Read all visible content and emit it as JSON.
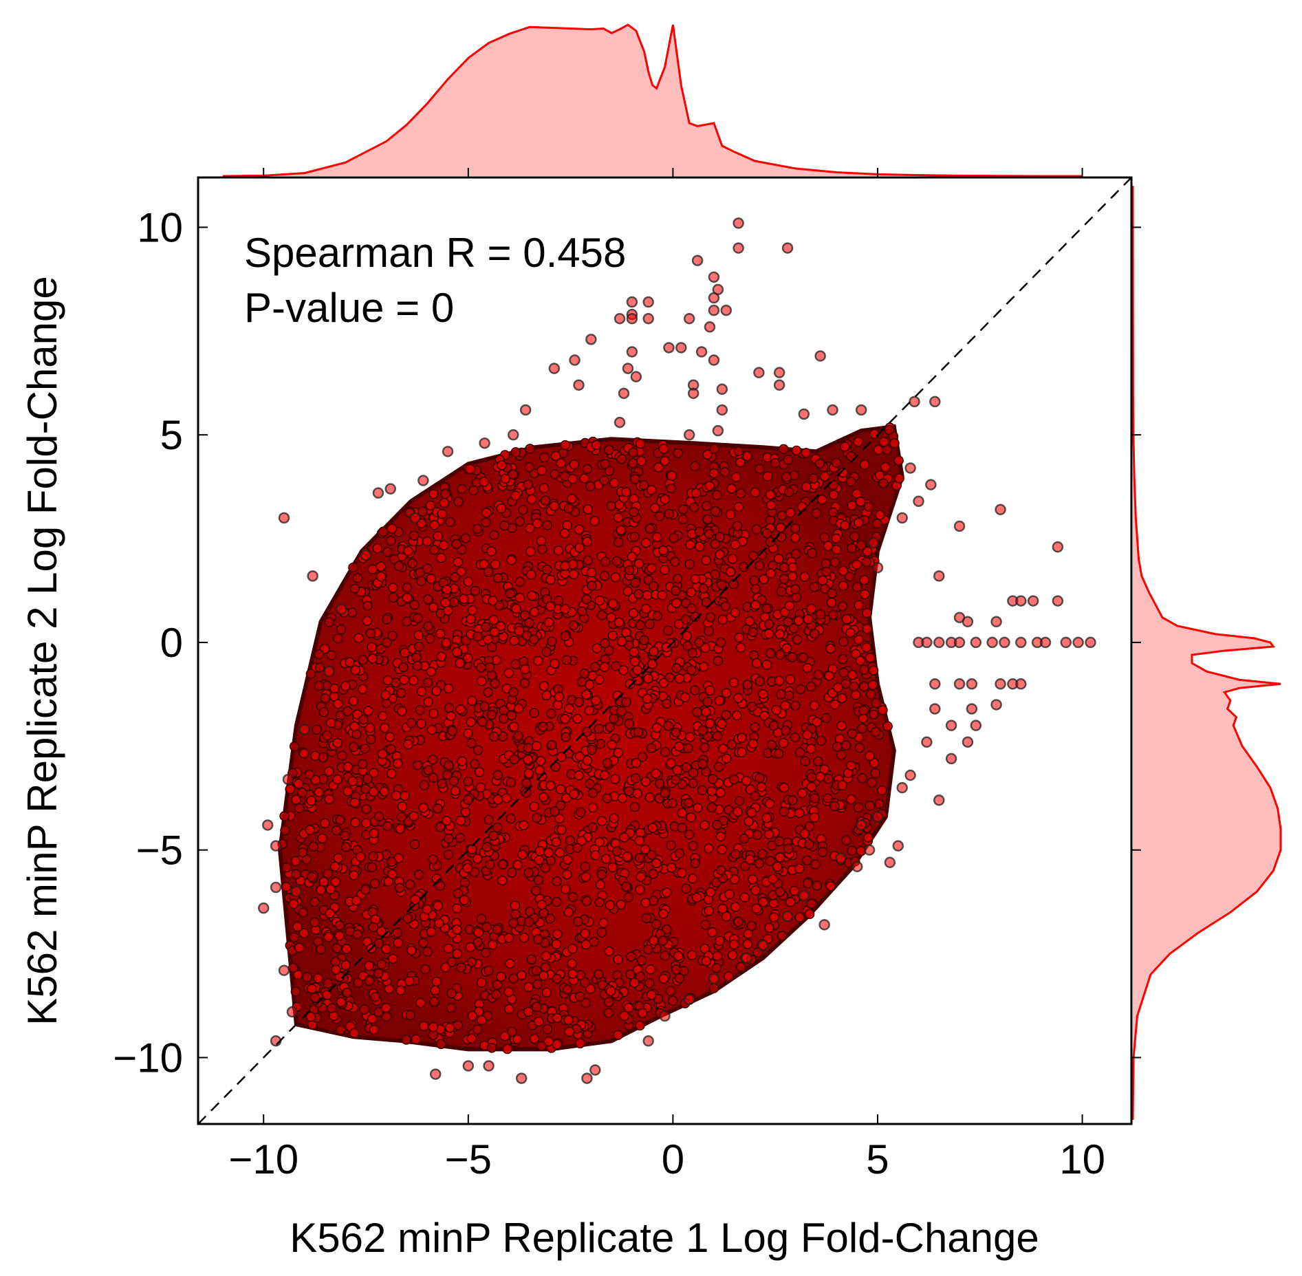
{
  "chart_data": {
    "type": "scatter",
    "xlabel": "K562 minP Replicate 1 Log Fold-Change",
    "ylabel": "K562 minP Replicate 2 Log Fold-Change",
    "xlim": [
      -11.6,
      11.2
    ],
    "ylim": [
      -11.6,
      11.2
    ],
    "xticks": [
      -10,
      -5,
      0,
      5,
      10
    ],
    "yticks": [
      -10,
      -5,
      0,
      5,
      10
    ],
    "xtick_labels": [
      "−10",
      "−5",
      "0",
      "5",
      "10"
    ],
    "ytick_labels": [
      "−10",
      "−5",
      "0",
      "5",
      "10"
    ],
    "annotations": [
      "Spearman R = 0.458",
      "P-value = 0"
    ],
    "grid": false,
    "identity_line": true,
    "colors": {
      "point_fill": "#ff0000",
      "point_edge": "#222222",
      "kde_line": "#ff0000",
      "kde_fill": "#ffbdbd"
    },
    "marginal_x_kde": {
      "x": [
        -11,
        -10,
        -9,
        -8,
        -7,
        -6.5,
        -6,
        -5.5,
        -5,
        -4.5,
        -4,
        -3.5,
        -3,
        -2.5,
        -2,
        -1.7,
        -1.5,
        -1.3,
        -1.1,
        -0.9,
        -0.7,
        -0.6,
        -0.5,
        -0.4,
        -0.2,
        0,
        0.2,
        0.4,
        0.6,
        0.8,
        1,
        1.2,
        1.5,
        2,
        3,
        4,
        5,
        6,
        7,
        8,
        9,
        10
      ],
      "density": [
        0,
        0.003,
        0.02,
        0.09,
        0.23,
        0.34,
        0.48,
        0.64,
        0.78,
        0.88,
        0.94,
        0.985,
        0.98,
        0.975,
        0.97,
        0.975,
        0.945,
        0.97,
        1.0,
        0.96,
        0.82,
        0.69,
        0.6,
        0.58,
        0.72,
        1.0,
        0.6,
        0.35,
        0.33,
        0.34,
        0.35,
        0.2,
        0.16,
        0.1,
        0.05,
        0.025,
        0.012,
        0.006,
        0.003,
        0.001,
        0,
        0
      ]
    },
    "marginal_y_kde": {
      "y": [
        -11.5,
        -10,
        -9,
        -8,
        -7.5,
        -7,
        -6.5,
        -6,
        -5.5,
        -5,
        -4.5,
        -4,
        -3.5,
        -3,
        -2.5,
        -2,
        -1.8,
        -1.6,
        -1.4,
        -1.2,
        -1.1,
        -1.0,
        -0.9,
        -0.7,
        -0.5,
        -0.3,
        -0.2,
        -0.1,
        0,
        0.1,
        0.2,
        0.4,
        0.6,
        0.8,
        1.2,
        1.6,
        2,
        3,
        4,
        5,
        6,
        8,
        11
      ],
      "density": [
        0,
        0.005,
        0.03,
        0.12,
        0.25,
        0.44,
        0.66,
        0.84,
        0.95,
        1.0,
        1.0,
        0.98,
        0.93,
        0.84,
        0.74,
        0.68,
        0.7,
        0.64,
        0.66,
        0.62,
        0.72,
        1.0,
        0.72,
        0.5,
        0.4,
        0.4,
        0.62,
        0.95,
        0.93,
        0.82,
        0.56,
        0.3,
        0.2,
        0.17,
        0.11,
        0.06,
        0.04,
        0.02,
        0.01,
        0.004,
        0.002,
        0.001,
        0
      ]
    },
    "series": [
      {
        "description_values": "scattered individual points (bulk of ~hundreds of thousands is summarized by the main cloud)",
        "points": [
          [
            1.6,
            10.1
          ],
          [
            1.6,
            9.5
          ],
          [
            2.8,
            9.5
          ],
          [
            0.6,
            9.2
          ],
          [
            1.0,
            8.8
          ],
          [
            1.1,
            8.5
          ],
          [
            1.0,
            8.3
          ],
          [
            -1.0,
            8.2
          ],
          [
            -0.6,
            8.2
          ],
          [
            -1.0,
            7.9
          ],
          [
            1.0,
            8.0
          ],
          [
            1.3,
            8.0
          ],
          [
            -1.3,
            7.8
          ],
          [
            -1.0,
            7.8
          ],
          [
            -0.6,
            7.8
          ],
          [
            0.4,
            7.8
          ],
          [
            0.9,
            7.6
          ],
          [
            -2.0,
            7.3
          ],
          [
            -1.0,
            7.0
          ],
          [
            -0.1,
            7.1
          ],
          [
            0.2,
            7.1
          ],
          [
            0.7,
            7.0
          ],
          [
            1.0,
            6.8
          ],
          [
            3.6,
            6.9
          ],
          [
            -2.4,
            6.8
          ],
          [
            -2.9,
            6.6
          ],
          [
            -1.1,
            6.6
          ],
          [
            -0.9,
            6.4
          ],
          [
            2.1,
            6.5
          ],
          [
            2.6,
            6.5
          ],
          [
            -2.3,
            6.2
          ],
          [
            0.5,
            6.2
          ],
          [
            1.2,
            6.1
          ],
          [
            2.6,
            6.2
          ],
          [
            -1.2,
            6.0
          ],
          [
            0.5,
            6.0
          ],
          [
            6.4,
            5.8
          ],
          [
            5.9,
            5.8
          ],
          [
            4.6,
            5.6
          ],
          [
            -3.6,
            5.6
          ],
          [
            1.2,
            5.6
          ],
          [
            3.2,
            5.5
          ],
          [
            1.1,
            5.1
          ],
          [
            0.4,
            5.0
          ],
          [
            -1.3,
            5.3
          ],
          [
            3.9,
            5.6
          ],
          [
            -9.9,
            -4.4
          ],
          [
            -9.7,
            -4.9
          ],
          [
            -9.0,
            -2.1
          ],
          [
            -9.4,
            -3.3
          ],
          [
            -9.7,
            -9.6
          ],
          [
            -9.3,
            -8.9
          ],
          [
            -9.5,
            -7.9
          ],
          [
            -10.0,
            -6.4
          ],
          [
            -9.2,
            -6.0
          ],
          [
            -9.7,
            -5.9
          ],
          [
            -5.0,
            -10.2
          ],
          [
            -5.8,
            -10.4
          ],
          [
            -2.1,
            -10.5
          ],
          [
            -1.9,
            -10.3
          ],
          [
            -3.7,
            -10.5
          ],
          [
            -4.5,
            -10.2
          ],
          [
            5.3,
            -5.3
          ],
          [
            4.5,
            -5.4
          ],
          [
            4.8,
            -5.0
          ],
          [
            5.5,
            -4.9
          ],
          [
            6.5,
            -3.8
          ],
          [
            7.2,
            -2.4
          ],
          [
            7.4,
            -2.0
          ],
          [
            6.8,
            -2.8
          ],
          [
            7.9,
            -1.5
          ],
          [
            8.0,
            3.2
          ],
          [
            7.0,
            2.8
          ],
          [
            6.5,
            1.6
          ],
          [
            9.4,
            2.3
          ],
          [
            8.3,
            1.0
          ],
          [
            8.5,
            1.0
          ],
          [
            8.8,
            1.0
          ],
          [
            9.4,
            1.0
          ],
          [
            7.0,
            0.6
          ],
          [
            7.2,
            0.5
          ],
          [
            7.9,
            0.5
          ],
          [
            6.0,
            0
          ],
          [
            6.2,
            0
          ],
          [
            6.5,
            0
          ],
          [
            6.8,
            0
          ],
          [
            7.0,
            0
          ],
          [
            7.4,
            0
          ],
          [
            7.8,
            0
          ],
          [
            8.1,
            0
          ],
          [
            8.5,
            0
          ],
          [
            8.9,
            0
          ],
          [
            9.1,
            0
          ],
          [
            9.6,
            0
          ],
          [
            9.9,
            0
          ],
          [
            10.2,
            0
          ],
          [
            6.4,
            -1.0
          ],
          [
            7.0,
            -1.0
          ],
          [
            7.3,
            -1.0
          ],
          [
            8.0,
            -1.0
          ],
          [
            8.3,
            -1.0
          ],
          [
            8.5,
            -1.0
          ],
          [
            6.4,
            -1.6
          ],
          [
            7.3,
            -1.6
          ],
          [
            6.8,
            -2.0
          ],
          [
            6.2,
            -2.4
          ],
          [
            5.8,
            -3.2
          ],
          [
            5.6,
            -3.5
          ],
          [
            5.0,
            -4.2
          ],
          [
            4.6,
            -4.4
          ],
          [
            4.1,
            -5.2
          ],
          [
            3.2,
            -6.1
          ],
          [
            3.7,
            -6.8
          ],
          [
            2.8,
            -6.6
          ],
          [
            2.2,
            -7.3
          ],
          [
            1.8,
            -7.6
          ],
          [
            1.0,
            -8.1
          ],
          [
            0.4,
            -8.6
          ],
          [
            -0.2,
            -9.0
          ],
          [
            -0.6,
            -9.6
          ],
          [
            5.8,
            4.2
          ],
          [
            6.3,
            3.8
          ],
          [
            6.0,
            3.4
          ],
          [
            5.6,
            3.0
          ],
          [
            4.9,
            2.4
          ],
          [
            5.0,
            1.8
          ],
          [
            -9.5,
            3.0
          ],
          [
            -8.8,
            1.6
          ],
          [
            -8.1,
            0.8
          ],
          [
            -7.2,
            3.6
          ],
          [
            -6.9,
            3.7
          ],
          [
            -6.3,
            3.0
          ],
          [
            -6.1,
            3.9
          ],
          [
            -5.5,
            4.6
          ],
          [
            -4.6,
            4.8
          ],
          [
            -3.9,
            5.0
          ],
          [
            -7.5,
            2.1
          ],
          [
            -8.4,
            -0.7
          ]
        ]
      }
    ]
  }
}
